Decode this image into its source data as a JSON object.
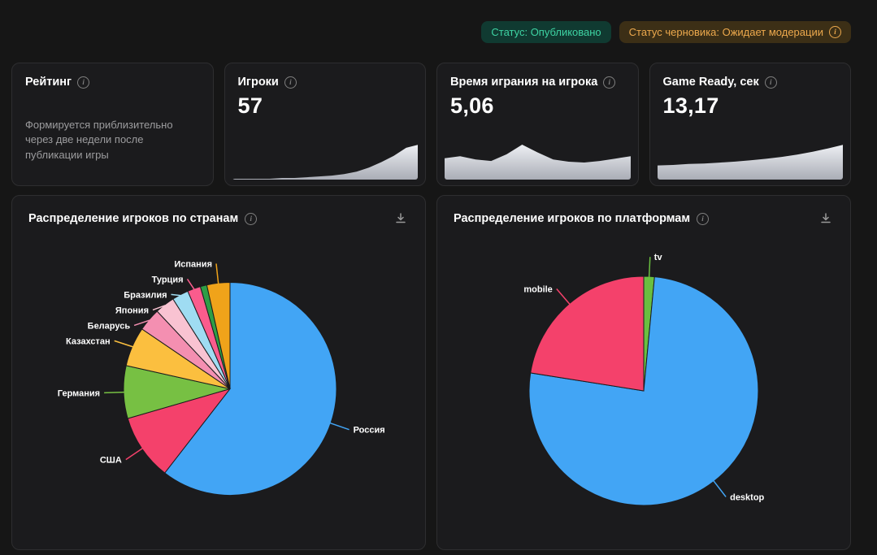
{
  "badges": {
    "published": "Статус: Опубликовано",
    "draft": "Статус черновика: Ожидает модерации"
  },
  "icons": {
    "info": "i"
  },
  "stat_cards": {
    "rating": {
      "title": "Рейтинг",
      "note": "Формируется приблизительно через две недели после публикации игры"
    },
    "players": {
      "title": "Игроки",
      "value": "57"
    },
    "time_per_player": {
      "title": "Время играния на игрока",
      "value": "5,06"
    },
    "game_ready": {
      "title": "Game Ready, сек",
      "value": "13,17"
    }
  },
  "pie_cards": {
    "countries": {
      "title": "Распределение игроков по странам"
    },
    "platforms": {
      "title": "Распределение игроков по платформам"
    }
  },
  "colors": {
    "page_bg": "#161616",
    "card_bg": "#1b1b1d",
    "published_badge_bg": "#103a31",
    "published_badge_text": "#3ed3a3",
    "draft_badge_bg": "#3c2f16",
    "draft_badge_text": "#eda94d",
    "sparkline_fill_top": "#edeff3",
    "sparkline_fill_bottom": "#aaadb6"
  },
  "chart_data": [
    {
      "type": "area",
      "title": "Игроки",
      "values": [
        1,
        1,
        1,
        1,
        2,
        2,
        3,
        4,
        5,
        7,
        10,
        15,
        22,
        30,
        40,
        44
      ]
    },
    {
      "type": "area",
      "title": "Время играния на игрока",
      "values": [
        5.5,
        6,
        5.2,
        4.8,
        6.5,
        9,
        7,
        5.2,
        4.6,
        4.4,
        4.8,
        5.4,
        6
      ]
    },
    {
      "type": "area",
      "title": "Game Ready, сек",
      "values": [
        3,
        3.1,
        3.3,
        3.4,
        3.6,
        3.8,
        4.1,
        4.4,
        4.8,
        5.3,
        5.9,
        6.6,
        7.4
      ]
    },
    {
      "type": "pie",
      "title": "Распределение игроков по странам",
      "labels": [
        "Россия",
        "США",
        "Германия",
        "Казахстан",
        "Беларусь",
        "Япония",
        "Бразилия",
        "Турция",
        "",
        "Испания"
      ],
      "values": [
        60.5,
        10,
        8,
        6,
        3.5,
        3,
        2.5,
        2,
        1,
        3.5
      ],
      "colors": [
        "#42a5f5",
        "#f4416b",
        "#77c043",
        "#fbbf3f",
        "#f48fb1",
        "#f9c3d2",
        "#9fdcf2",
        "#fa5c8d",
        "#2e9e46",
        "#f0a31a"
      ],
      "legend_position": "callout-labels"
    },
    {
      "type": "pie",
      "title": "Распределение игроков по платформам",
      "labels": [
        "tv",
        "desktop",
        "mobile"
      ],
      "values": [
        1.5,
        76,
        22.5
      ],
      "colors": [
        "#6abf40",
        "#42a5f5",
        "#f4416b"
      ],
      "legend_position": "callout-labels"
    }
  ]
}
